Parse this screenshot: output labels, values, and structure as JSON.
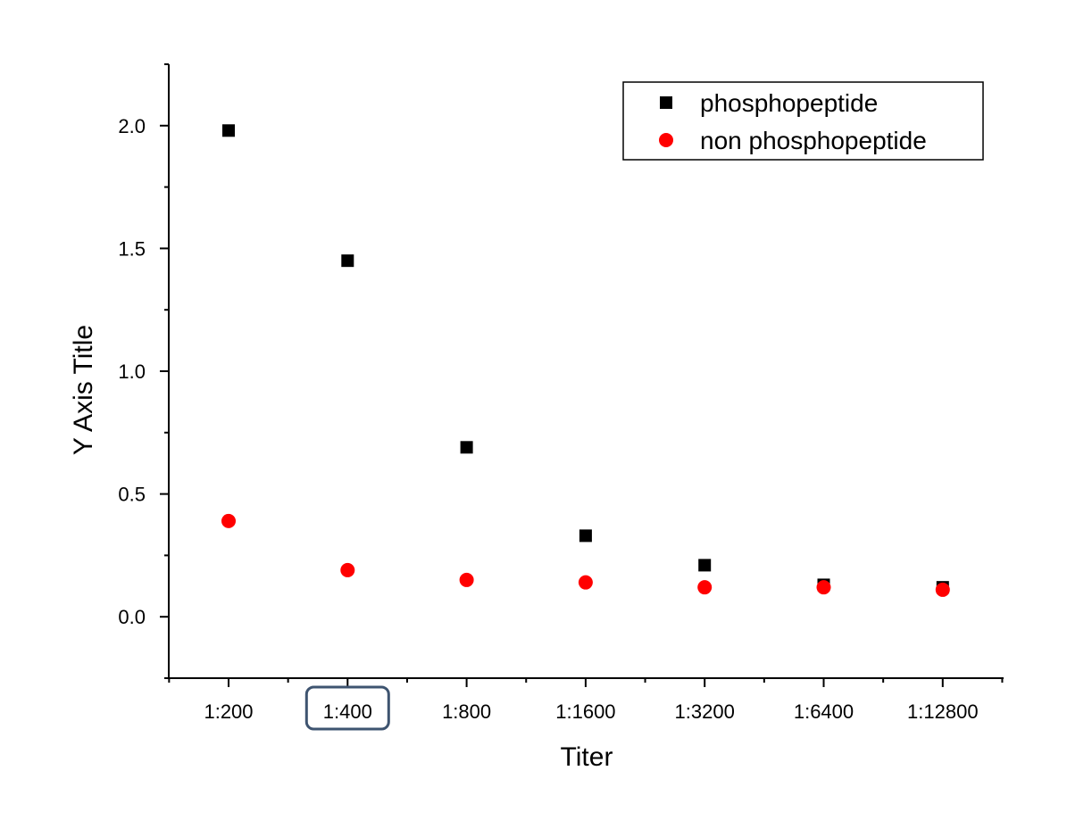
{
  "chart_data": {
    "type": "scatter",
    "title": "",
    "xlabel": "Titer",
    "ylabel": "Y Axis Title",
    "categories": [
      "1:200",
      "1:400",
      "1:800",
      "1:1600",
      "1:3200",
      "1:6400",
      "1:12800"
    ],
    "ylim": [
      -0.25,
      2.25
    ],
    "yticks": [
      0.0,
      0.5,
      1.0,
      1.5,
      2.0
    ],
    "ytick_labels": [
      "0.0",
      "0.5",
      "1.0",
      "1.5",
      "2.0"
    ],
    "grid": false,
    "legend": "top-right",
    "highlighted_category": "1:400",
    "series": [
      {
        "name": "phosphopeptide",
        "marker": "square",
        "color": "#000000",
        "values": [
          1.98,
          1.45,
          0.69,
          0.33,
          0.21,
          0.13,
          0.12
        ]
      },
      {
        "name": "non phosphopeptide",
        "marker": "circle",
        "color": "#ff0000",
        "values": [
          0.39,
          0.19,
          0.15,
          0.14,
          0.12,
          0.12,
          0.11
        ]
      }
    ]
  }
}
